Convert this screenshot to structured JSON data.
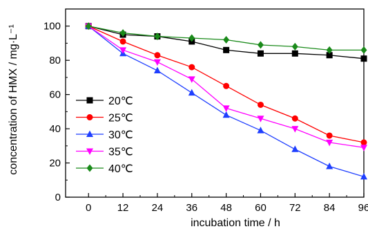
{
  "chart_data": {
    "type": "line",
    "title": "",
    "xlabel": "incubation time / h",
    "ylabel": "concentration of HMX / mg·L⁻¹",
    "x": [
      0,
      12,
      24,
      36,
      48,
      60,
      72,
      84,
      96
    ],
    "xlim": [
      -8,
      96
    ],
    "ylim": [
      0,
      110
    ],
    "x_ticks": [
      "0",
      "12",
      "24",
      "36",
      "48",
      "60",
      "72",
      "84",
      "96"
    ],
    "y_ticks": [
      "0",
      "20",
      "40",
      "60",
      "80",
      "100"
    ],
    "grid": false,
    "legend_position": "left",
    "series": [
      {
        "name": "20℃",
        "color": "#000000",
        "marker": "square",
        "values": [
          100,
          95,
          94,
          91,
          86,
          84,
          84,
          83,
          81
        ]
      },
      {
        "name": "25℃",
        "color": "#ff0000",
        "marker": "circle",
        "values": [
          100,
          91,
          83,
          76,
          65,
          54,
          46,
          36,
          32
        ]
      },
      {
        "name": "30℃",
        "color": "#1f3fff",
        "marker": "triangle-up",
        "values": [
          100,
          84,
          74,
          61,
          48,
          39,
          28,
          18,
          12
        ]
      },
      {
        "name": "35℃",
        "color": "#ff00ff",
        "marker": "triangle-down",
        "values": [
          100,
          86,
          79,
          69,
          52,
          46,
          40,
          32,
          29
        ]
      },
      {
        "name": "40℃",
        "color": "#1a8a1a",
        "marker": "diamond",
        "values": [
          100,
          96,
          94,
          93,
          92,
          89,
          88,
          86,
          86
        ]
      }
    ]
  }
}
